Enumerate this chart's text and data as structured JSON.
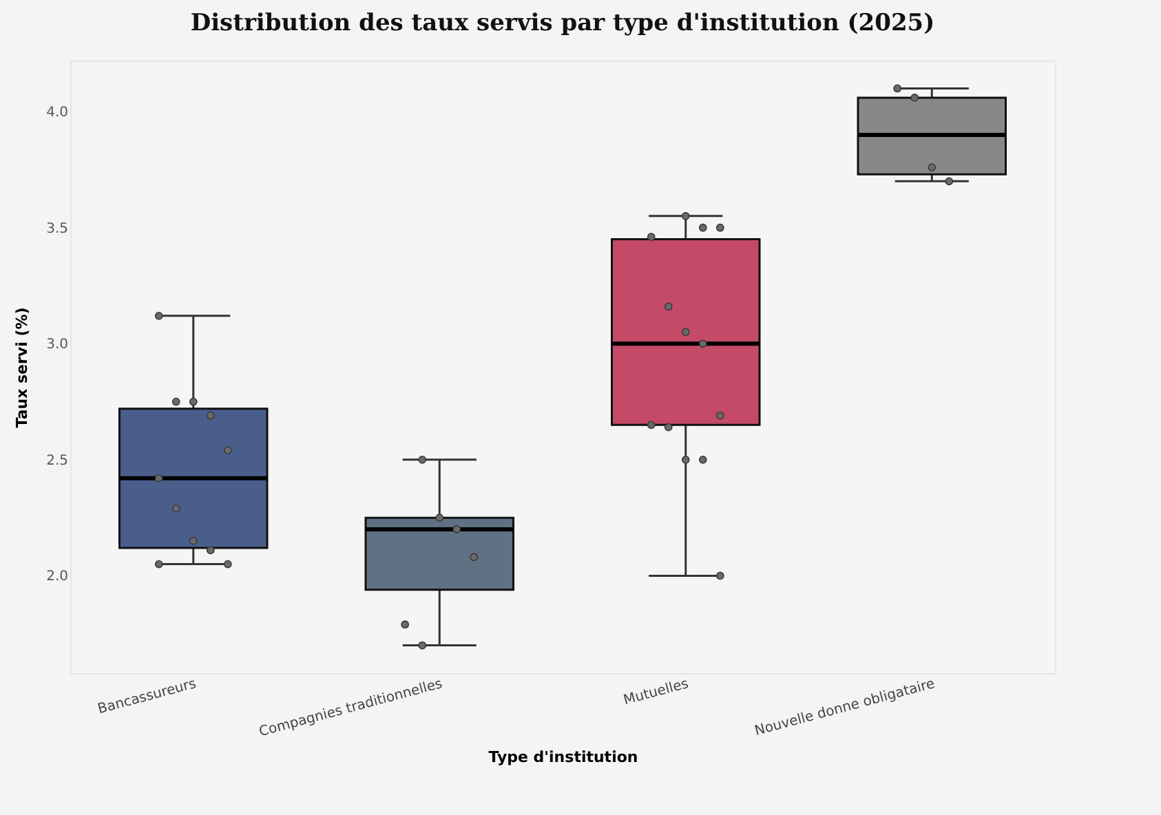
{
  "chart_data": {
    "type": "box",
    "title": "Distribution des taux servis par type d'institution (2025)",
    "xlabel": "Type d'institution",
    "ylabel": "Taux servi (%)",
    "categories": [
      "Bancassureurs",
      "Compagnies traditionnelles",
      "Mutuelles",
      "Nouvelle donne obligataire"
    ],
    "colors": [
      "#4a5e8c",
      "#5f7182",
      "#c44a68",
      "#888888"
    ],
    "boxes": [
      {
        "low": 2.05,
        "q1": 2.12,
        "median": 2.42,
        "q3": 2.72,
        "high": 3.12
      },
      {
        "low": 1.7,
        "q1": 1.94,
        "median": 2.2,
        "q3": 2.25,
        "high": 2.5
      },
      {
        "low": 2.0,
        "q1": 2.65,
        "median": 3.0,
        "q3": 3.45,
        "high": 3.55
      },
      {
        "low": 3.7,
        "q1": 3.73,
        "median": 3.9,
        "q3": 4.06,
        "high": 4.1
      }
    ],
    "series": [
      {
        "type": "scatter",
        "color": "#6a6a6a",
        "x": [
          "Bancassureurs",
          "Bancassureurs",
          "Bancassureurs",
          "Bancassureurs",
          "Bancassureurs",
          "Bancassureurs",
          "Bancassureurs",
          "Bancassureurs",
          "Bancassureurs",
          "Bancassureurs",
          "Bancassureurs",
          "Compagnies traditionnelles",
          "Compagnies traditionnelles",
          "Compagnies traditionnelles",
          "Compagnies traditionnelles",
          "Compagnies traditionnelles",
          "Compagnies traditionnelles",
          "Mutuelles",
          "Mutuelles",
          "Mutuelles",
          "Mutuelles",
          "Mutuelles",
          "Mutuelles",
          "Mutuelles",
          "Mutuelles",
          "Mutuelles",
          "Mutuelles",
          "Mutuelles",
          "Mutuelles",
          "Mutuelles",
          "Nouvelle donne obligataire",
          "Nouvelle donne obligataire",
          "Nouvelle donne obligataire",
          "Nouvelle donne obligataire"
        ],
        "values": [
          3.12,
          2.75,
          2.75,
          2.69,
          2.54,
          2.42,
          2.29,
          2.15,
          2.11,
          2.05,
          2.05,
          2.5,
          2.25,
          2.2,
          2.08,
          1.79,
          1.7,
          3.55,
          3.5,
          3.5,
          3.46,
          3.16,
          3.05,
          3.0,
          2.69,
          2.65,
          2.64,
          2.5,
          2.5,
          2.0,
          4.1,
          4.06,
          3.76,
          3.7
        ]
      }
    ],
    "ylim": [
      1.58,
      4.22
    ],
    "yticks": [
      {
        "value": 2,
        "label": "2.0"
      },
      {
        "value": 2.5,
        "label": "2.5"
      },
      {
        "value": 3,
        "label": "3.0"
      },
      {
        "value": 3.5,
        "label": "3.5"
      },
      {
        "value": 4,
        "label": "4.0"
      }
    ],
    "grid": false,
    "legend": false,
    "marker": "circle"
  }
}
